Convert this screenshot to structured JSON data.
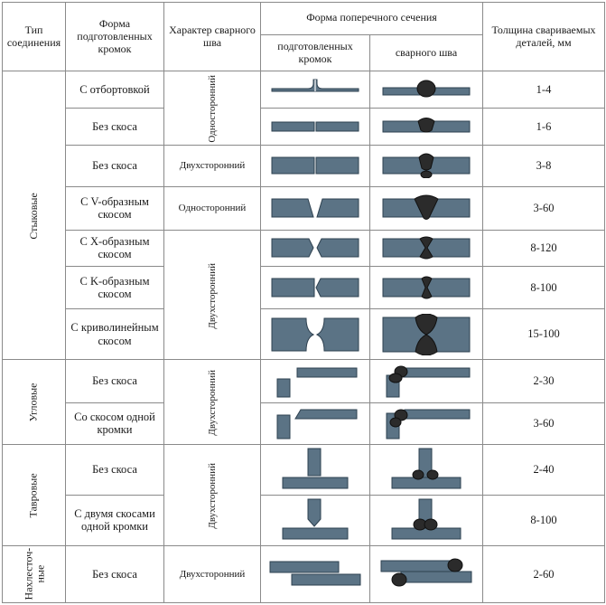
{
  "headers": {
    "type": "Тип соединения",
    "edge_form": "Форма подготовленных кромок",
    "seam": "Характер сварного шва",
    "section": "Форма поперечного сечения",
    "section_prepared": "подготовленных кромок",
    "section_weld": "сварного шва",
    "thickness": "Толщина свариваемых деталей, мм"
  },
  "groups": {
    "butt": "Стыковые",
    "corner": "Угловые",
    "tee": "Тавровые",
    "lap_line1": "Нахлесточ-",
    "lap_line2": "ные"
  },
  "seams": {
    "one_sided": "Односторонний",
    "two_sided": "Двухсторонний"
  },
  "rows": [
    {
      "edge": "С отбортовкой",
      "thickness": "1-4"
    },
    {
      "edge": "Без скоса",
      "thickness": "1-6"
    },
    {
      "edge": "Без скоса",
      "thickness": "3-8"
    },
    {
      "edge": "С V-образным скосом",
      "thickness": "3-60"
    },
    {
      "edge": "С X-образным скосом",
      "thickness": "8-120"
    },
    {
      "edge": "С K-образным скосом",
      "thickness": "8-100"
    },
    {
      "edge": "С криволинейным скосом",
      "thickness": "15-100"
    },
    {
      "edge": "Без скоса",
      "thickness": "2-30"
    },
    {
      "edge": "Со скосом одной кромки",
      "thickness": "3-60"
    },
    {
      "edge": "Без скоса",
      "thickness": "2-40"
    },
    {
      "edge": "С двумя скосами одной кромки",
      "thickness": "8-100"
    },
    {
      "edge": "Без скоса",
      "thickness": "2-60"
    }
  ]
}
